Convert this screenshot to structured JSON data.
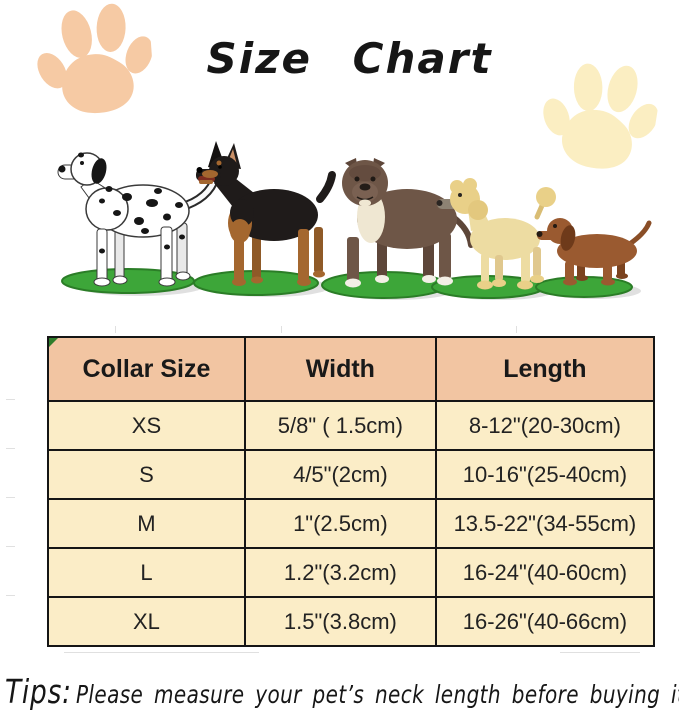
{
  "title": "Size Chart",
  "tips": {
    "label": "Tips:",
    "text": "Please measure your pet’s neck length before buying it."
  },
  "dogs": [
    "Dalmatian",
    "Doberman Pinscher",
    "Pit Bull",
    "Poodle",
    "Dachshund"
  ],
  "icons": {
    "top_left": "paw-print",
    "right": "paw-print"
  },
  "colors": {
    "paw_peach": "#f6caa4",
    "paw_yellow": "#fbeec2",
    "table_header_bg": "#f2c5a2",
    "table_row_bg": "#fbedc7",
    "table_border": "#151515",
    "grass_green": "#3da639",
    "grass_dark": "#2b7d27",
    "text": "#1a1a1a"
  },
  "chart_data": {
    "type": "table",
    "title": "Size Chart",
    "columns": [
      "Collar Size",
      "Width",
      "Length"
    ],
    "rows": [
      [
        "XS",
        "5/8\" ( 1.5cm)",
        "8-12\"(20-30cm)"
      ],
      [
        "S",
        "4/5\"(2cm)",
        "10-16\"(25-40cm)"
      ],
      [
        "M",
        "1\"(2.5cm)",
        "13.5-22\"(34-55cm)"
      ],
      [
        "L",
        "1.2\"(3.2cm)",
        "16-24\"(40-60cm)"
      ],
      [
        "XL",
        "1.5\"(3.8cm)",
        "16-26\"(40-66cm)"
      ]
    ]
  }
}
